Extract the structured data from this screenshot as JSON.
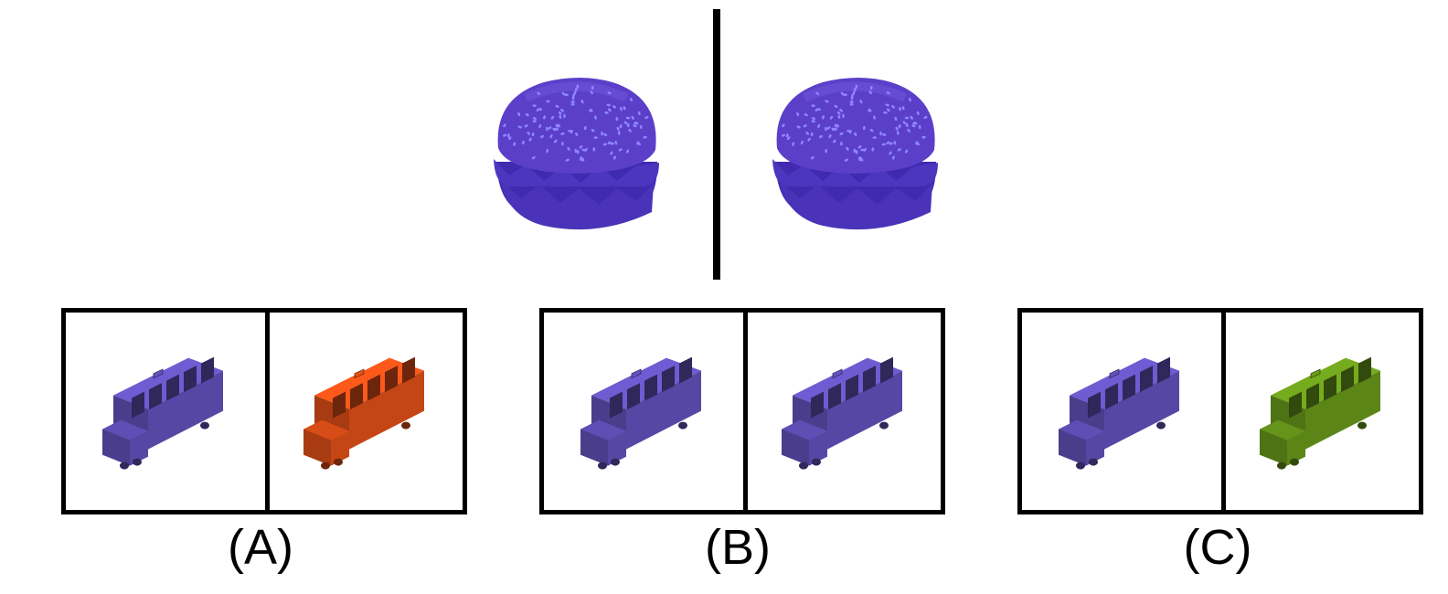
{
  "reference": {
    "left_item": {
      "object": "burger",
      "color": "#5b3fc9"
    },
    "right_item": {
      "object": "burger",
      "color": "#5b3fc9"
    }
  },
  "options": [
    {
      "label": "(A)",
      "left": {
        "object": "bus",
        "color": "#6a57c8"
      },
      "right": {
        "object": "bus",
        "color": "#f0551a"
      }
    },
    {
      "label": "(B)",
      "left": {
        "object": "bus",
        "color": "#6a57c8"
      },
      "right": {
        "object": "bus",
        "color": "#6a57c8"
      }
    },
    {
      "label": "(C)",
      "left": {
        "object": "bus",
        "color": "#6a57c8"
      },
      "right": {
        "object": "bus",
        "color": "#6fa41c"
      }
    }
  ]
}
